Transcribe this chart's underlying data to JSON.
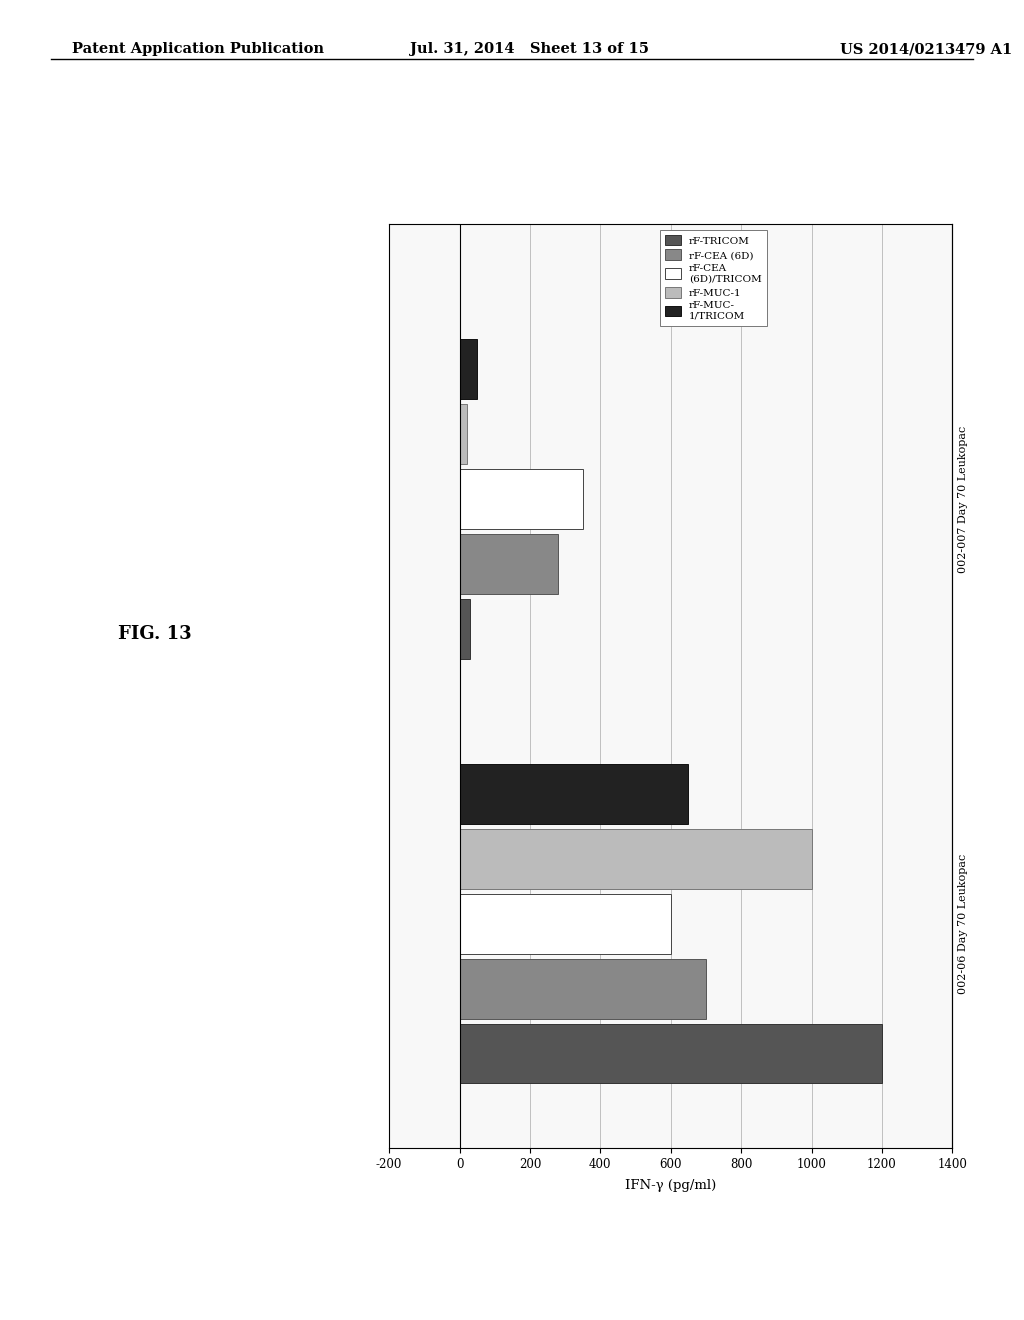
{
  "xlabel": "IFN-γ (pg/ml)",
  "groups": [
    "002-06 Day 70 Leukopac",
    "002-007 Day 70 Leukopac"
  ],
  "legend_labels": [
    "rF-TRICOM",
    "rF-CEA (6D)",
    "rF-CEA\n(6D)/TRICOM",
    "rF-MUC-1",
    "rF-MUC-\n1/TRICOM"
  ],
  "series_colors": [
    "#555555",
    "#888888",
    "#ffffff",
    "#bbbbbb",
    "#222222"
  ],
  "series_edgecolors": [
    "#333333",
    "#555555",
    "#444444",
    "#777777",
    "#111111"
  ],
  "xlim": [
    -200,
    1400
  ],
  "xticks": [
    -200,
    0,
    200,
    400,
    600,
    800,
    1000,
    1200,
    1400
  ],
  "values_group0": [
    1200,
    700,
    600,
    1000,
    650
  ],
  "values_group1": [
    30,
    280,
    350,
    20,
    50
  ],
  "background_color": "#f0f0f0",
  "header_left": "Patent Application Publication",
  "header_center": "Jul. 31, 2014   Sheet 13 of 15",
  "header_right": "US 2014/0213479 A1",
  "fig_label": "FIG. 13"
}
